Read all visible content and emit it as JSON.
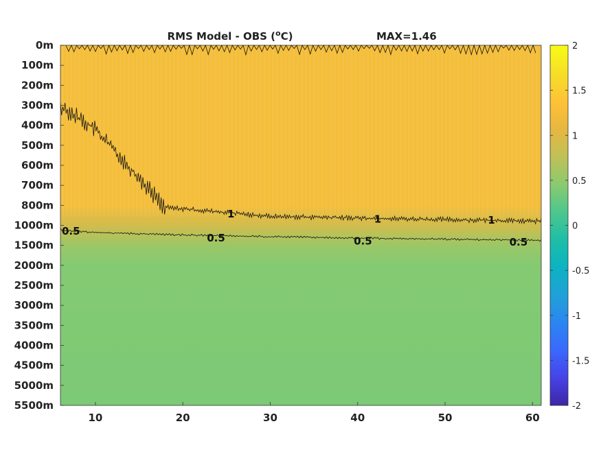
{
  "chart_data": {
    "type": "heatmap",
    "title": "RMS Model - OBS (",
    "title_sup": "o",
    "title_unit_after": "C)",
    "max_label": "MAX=1.46",
    "x_ticks": [
      10,
      20,
      30,
      40,
      50,
      60
    ],
    "xlim": [
      6,
      61
    ],
    "y_tick_labels": [
      "0m",
      "100m",
      "200m",
      "300m",
      "400m",
      "500m",
      "600m",
      "700m",
      "800m",
      "1000m",
      "1500m",
      "2000m",
      "2500m",
      "3000m",
      "3500m",
      "4000m",
      "4500m",
      "5000m",
      "5500m"
    ],
    "colorbar": {
      "ticks": [
        "2",
        "1.5",
        "1",
        "0.5",
        "0",
        "-0.5",
        "-1",
        "-1.5",
        "-2"
      ],
      "range": [
        -2,
        2
      ],
      "colors": [
        "#3e26a8",
        "#4743e7",
        "#3a69fd",
        "#2b86f1",
        "#1fa2d7",
        "#0cb3c2",
        "#20bea7",
        "#4ec78d",
        "#8cca6e",
        "#c1c057",
        "#e8b73f",
        "#fec336",
        "#f5e027",
        "#f9fb15"
      ]
    },
    "layers": [
      {
        "level_index": 0,
        "value": 1.25
      },
      {
        "level_index": 8,
        "value": 1.25
      },
      {
        "level_index": 9,
        "value": 0.9
      },
      {
        "level_index": 10,
        "value": 0.55
      },
      {
        "level_index": 11,
        "value": 0.42
      },
      {
        "level_index": 18,
        "value": 0.38
      }
    ],
    "contours": [
      {
        "level": "1",
        "labels": [
          {
            "text": "1",
            "x": 25.5,
            "level_index": 8.4
          },
          {
            "text": "1",
            "x": 42.3,
            "level_index": 8.65
          },
          {
            "text": "1",
            "x": 55.3,
            "level_index": 8.7
          }
        ]
      },
      {
        "level": "0.5",
        "labels": [
          {
            "text": "0.5",
            "x": 7.2,
            "level_index": 9.25
          },
          {
            "text": "0.5",
            "x": 23.8,
            "level_index": 9.6
          },
          {
            "text": "0.5",
            "x": 40.6,
            "level_index": 9.75
          },
          {
            "text": "0.5",
            "x": 58.4,
            "level_index": 9.8
          }
        ]
      }
    ]
  }
}
